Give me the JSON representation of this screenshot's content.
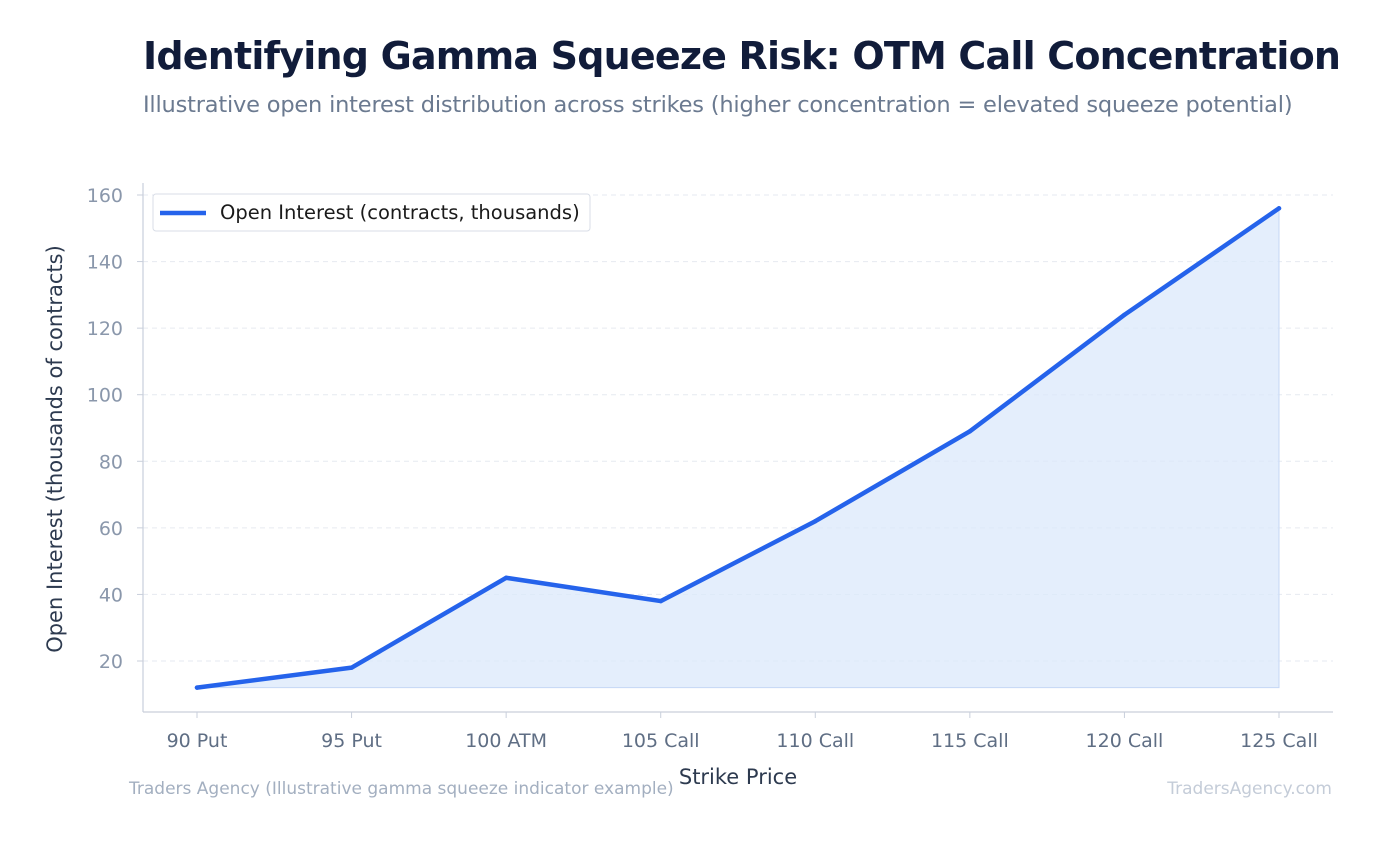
{
  "title": "Identifying Gamma Squeeze Risk: OTM Call Concentration",
  "subtitle": "Illustrative open interest distribution across strikes (higher concentration = elevated squeeze potential)",
  "footer": {
    "source": "Traders Agency (Illustrative gamma squeeze indicator example)",
    "watermark": "TradersAgency.com"
  },
  "colors": {
    "line": "#2563eb",
    "fill": "#dbe8fb",
    "grid": "#e6eaf0",
    "axis": "#c9cfdb"
  },
  "chart_data": {
    "type": "line",
    "title": "Identifying Gamma Squeeze Risk: OTM Call Concentration",
    "subtitle": "Illustrative open interest distribution across strikes (higher concentration = elevated squeeze potential)",
    "xlabel": "Strike Price",
    "ylabel": "Open Interest (thousands of contracts)",
    "categories": [
      "90 Put",
      "95 Put",
      "100 ATM",
      "105 Call",
      "110 Call",
      "115 Call",
      "120 Call",
      "125 Call"
    ],
    "series": [
      {
        "name": "Open Interest (contracts, thousands)",
        "values": [
          12,
          18,
          45,
          38,
          62,
          89,
          124,
          156
        ],
        "area_fill": true
      }
    ],
    "ylim": [
      5,
      164
    ],
    "yticks": [
      20,
      40,
      60,
      80,
      100,
      120,
      140,
      160
    ],
    "grid": "horizontal dashed",
    "legend": "top-left"
  }
}
